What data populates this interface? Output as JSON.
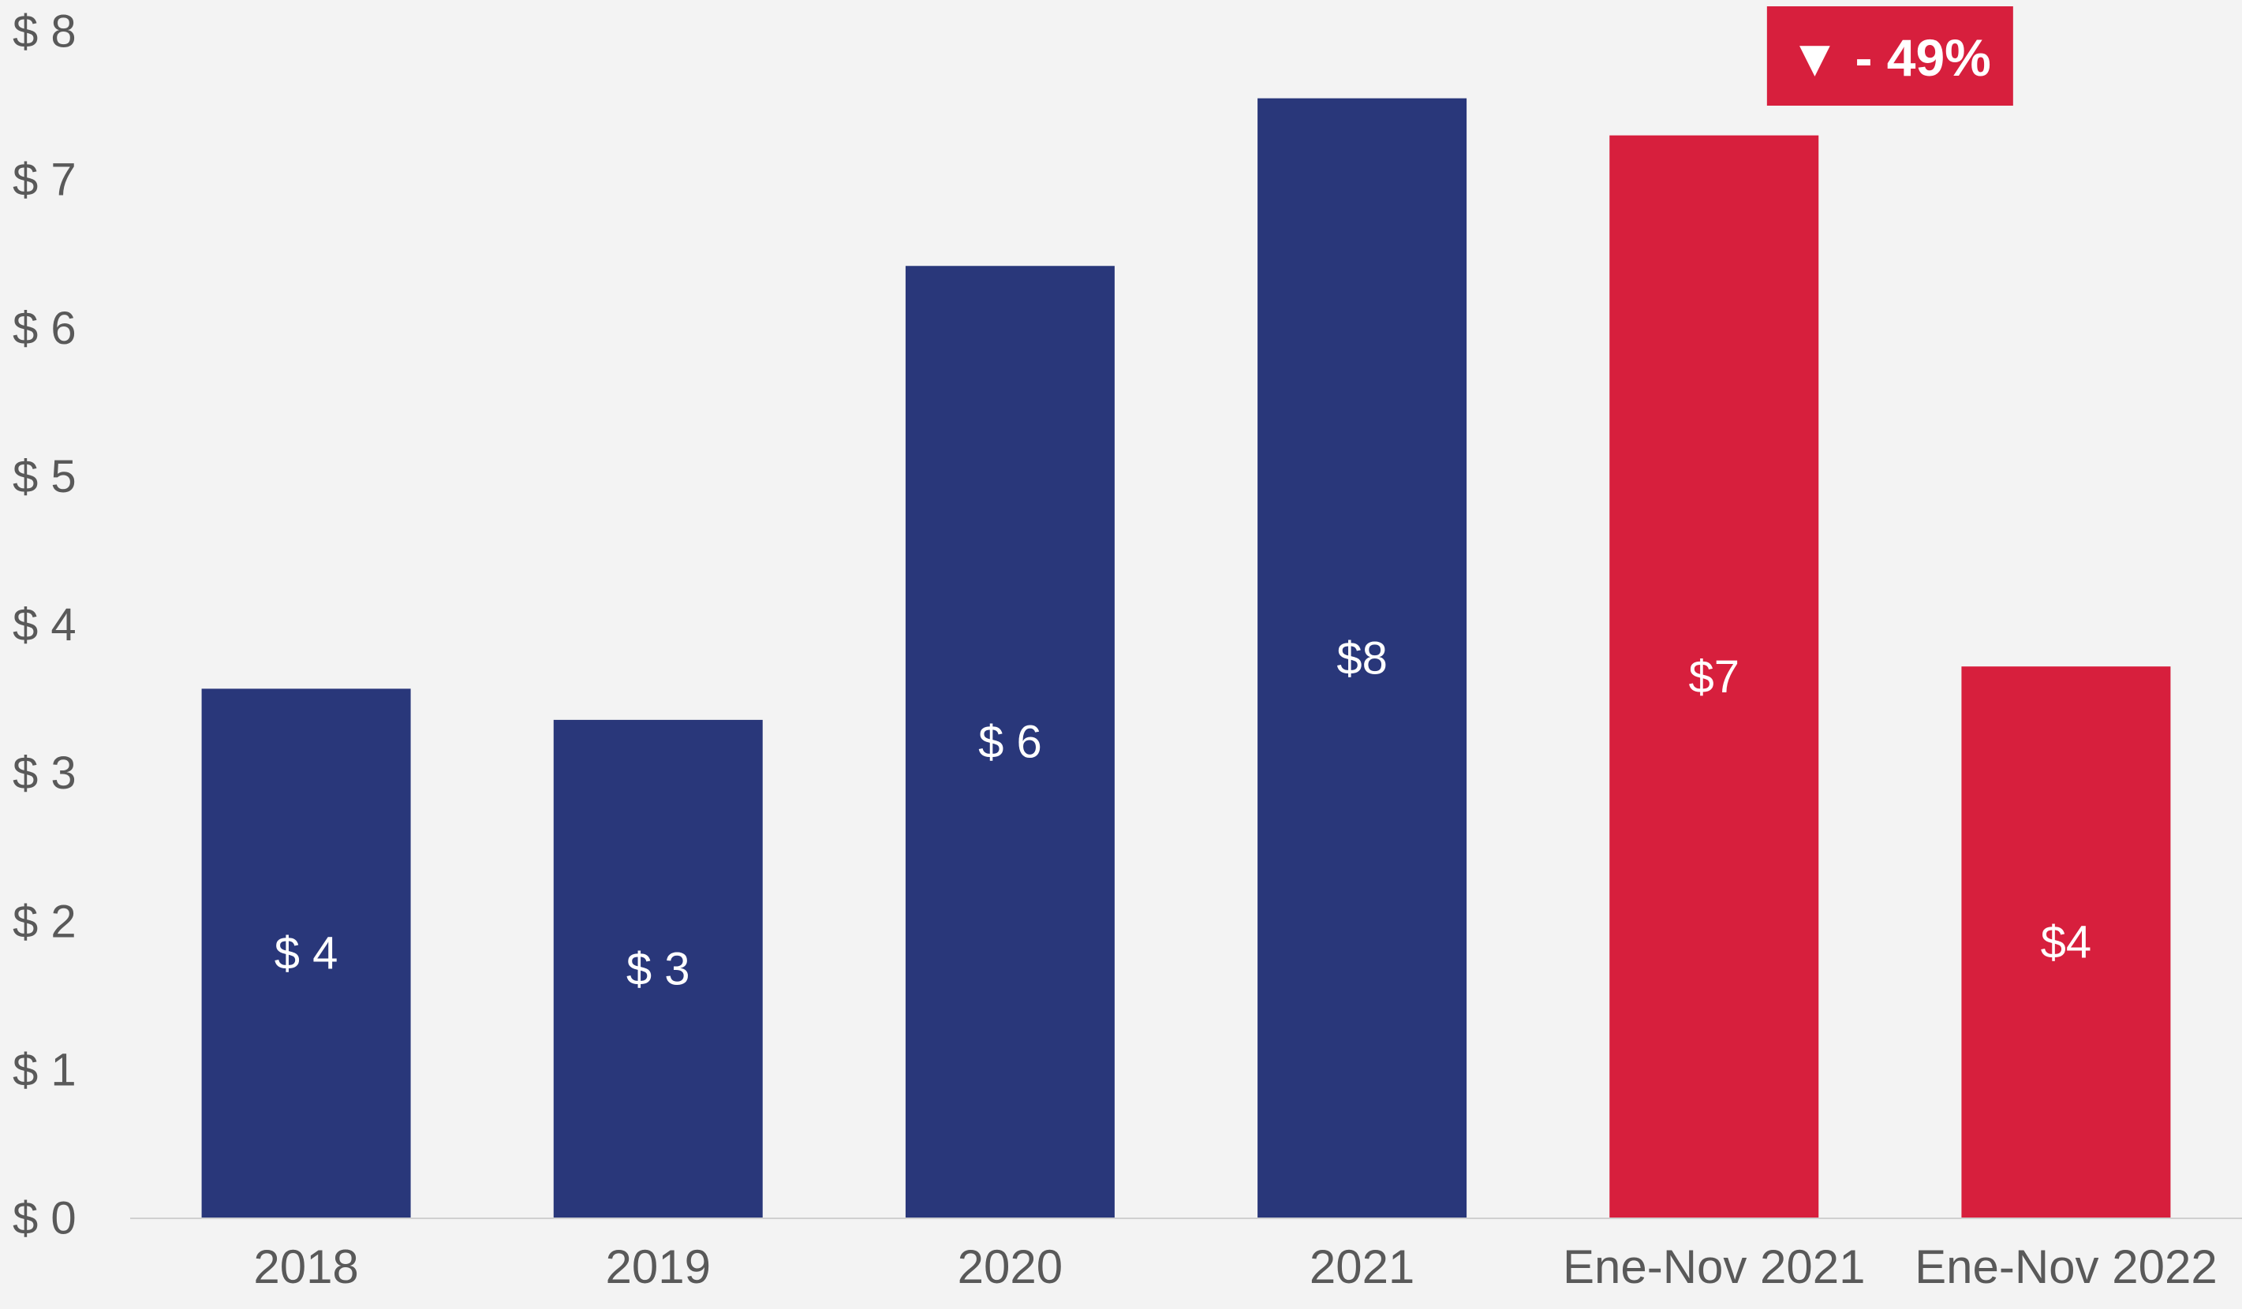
{
  "chart_data": {
    "type": "bar",
    "categories": [
      "2018",
      "2019",
      "2020",
      "2021",
      "Ene-Nov 2021",
      "Ene-Nov 2022"
    ],
    "values": [
      3.57,
      3.36,
      6.42,
      7.55,
      7.3,
      3.72
    ],
    "data_labels": [
      "$ 4",
      "$ 3",
      "$ 6",
      "$8",
      "$7",
      "$4"
    ],
    "bar_colors": [
      "#29377a",
      "#29377a",
      "#29377a",
      "#29377a",
      "#d71f3d",
      "#d71f3d"
    ],
    "ylim": [
      0,
      8
    ],
    "yticks": [
      0,
      1,
      2,
      3,
      4,
      5,
      6,
      7,
      8
    ],
    "ytick_labels": [
      "$ 0",
      "$ 1",
      "$ 2",
      "$ 3",
      "$ 4",
      "$ 5",
      "$ 6",
      "$ 7",
      "$ 8"
    ],
    "title": "",
    "xlabel": "",
    "ylabel": "",
    "grid": false,
    "legend": false,
    "annotation": {
      "text": "▼ - 49%",
      "color": "#d71f3d",
      "between_categories": [
        "Ene-Nov 2021",
        "Ene-Nov 2022"
      ]
    }
  },
  "colors": {
    "background": "#f3f3f3",
    "axis_line": "#d0d0d0",
    "tick_text": "#595959",
    "label_text": "#ffffff"
  }
}
